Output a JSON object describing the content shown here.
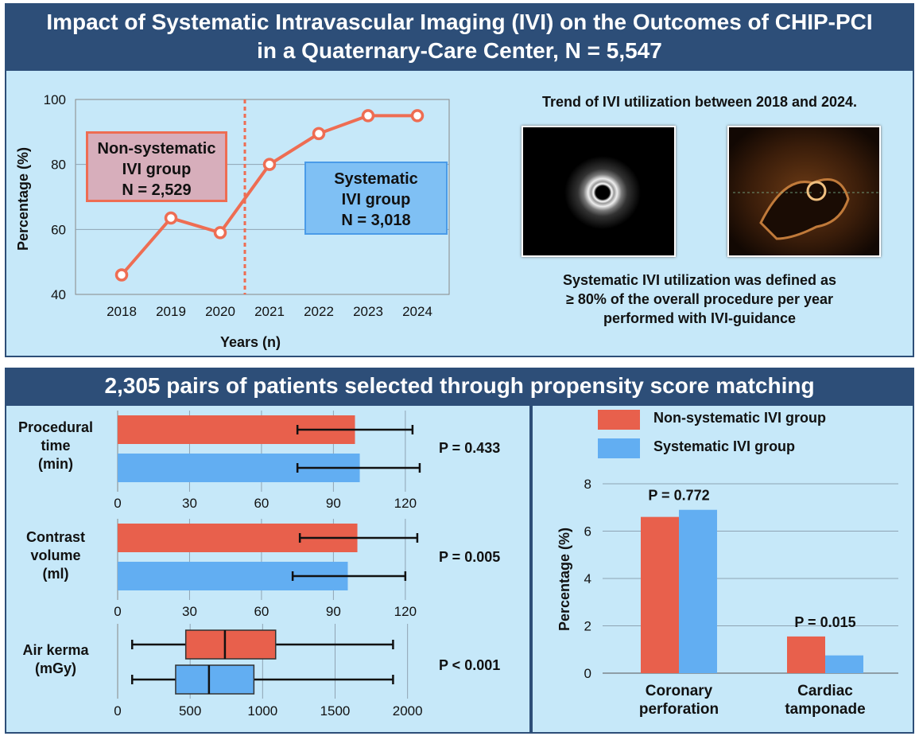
{
  "title": {
    "line1": "Impact of Systematic Intravascular Imaging (IVI) on the Outcomes of CHIP-PCI",
    "line2": "in a Quaternary-Care Center, N = 5,547"
  },
  "trend_text": {
    "heading": "Trend of IVI utilization between 2018 and 2024.",
    "definition_line1": "Systematic IVI utilization was defined as",
    "definition_line2": "≥ 80% of the overall procedure per year",
    "definition_line3": "performed with IVI-guidance"
  },
  "images": [
    {
      "name": "ivus-cross-section-image",
      "kind": "IVUS"
    },
    {
      "name": "oct-cross-section-image",
      "kind": "OCT"
    }
  ],
  "groups": {
    "nonsystematic": {
      "line1": "Non-systematic",
      "line2": "IVI group",
      "line3": "N = 2,529"
    },
    "systematic": {
      "line1": "Systematic",
      "line2": "IVI group",
      "line3": "N = 3,018"
    }
  },
  "bottom": {
    "banner": "2,305 pairs of patients selected through propensity score matching"
  },
  "colors": {
    "navy": "#2d4e78",
    "panel": "#c6e8f9",
    "red": "#e8604c",
    "blue": "#62aef2",
    "line": "#ee6d53"
  },
  "chart_data": [
    {
      "type": "line",
      "x": [
        "2018",
        "2019",
        "2020",
        "2021",
        "2022",
        "2023",
        "2024"
      ],
      "values": [
        46,
        63.5,
        59,
        80,
        89.5,
        95,
        95
      ],
      "xlabel": "Years (n)",
      "ylabel": "Percentage (%)",
      "yticks": [
        40,
        60,
        80,
        100
      ],
      "ylim": [
        40,
        100
      ],
      "divider_between": [
        "2020",
        "2021"
      ]
    },
    {
      "type": "bar",
      "label": [
        "Procedural",
        "time",
        "(min)"
      ],
      "p_value": "P = 0.433",
      "xlim": [
        0,
        130
      ],
      "xticks": [
        0,
        30,
        60,
        90,
        120
      ],
      "series": [
        {
          "name": "Non-systematic IVI group",
          "value": 99,
          "err_low": 75,
          "err_high": 123
        },
        {
          "name": "Systematic IVI group",
          "value": 101,
          "err_low": 75,
          "err_high": 126
        }
      ]
    },
    {
      "type": "bar",
      "label": [
        "Contrast",
        "volume",
        "(ml)"
      ],
      "p_value": "P = 0.005",
      "xlim": [
        0,
        130
      ],
      "xticks": [
        0,
        30,
        60,
        90,
        120
      ],
      "series": [
        {
          "name": "Non-systematic IVI group",
          "value": 100,
          "err_low": 76,
          "err_high": 125
        },
        {
          "name": "Systematic IVI group",
          "value": 96,
          "err_low": 73,
          "err_high": 120
        }
      ]
    },
    {
      "type": "box",
      "label": [
        "Air kerma",
        "(mGy)"
      ],
      "p_value": "P < 0.001",
      "xlim": [
        0,
        2150
      ],
      "xticks": [
        0,
        500,
        1000,
        1500,
        2000
      ],
      "series": [
        {
          "name": "Non-systematic IVI group",
          "min": 100,
          "q1": 470,
          "median": 740,
          "q3": 1090,
          "max": 1900
        },
        {
          "name": "Systematic IVI group",
          "min": 100,
          "q1": 400,
          "median": 630,
          "q3": 940,
          "max": 1900
        }
      ]
    },
    {
      "type": "bar",
      "categories": [
        [
          "Coronary",
          "perforation"
        ],
        [
          "Cardiac",
          "tamponade"
        ]
      ],
      "ylabel": "Percentage (%)",
      "ylim": [
        0,
        8
      ],
      "yticks": [
        0,
        2,
        4,
        6,
        8
      ],
      "p_values": [
        "P = 0.772",
        "P = 0.015"
      ],
      "legend": [
        "Non-systematic IVI group",
        "Systematic IVI group"
      ],
      "series": [
        {
          "name": "Non-systematic IVI group",
          "values": [
            6.6,
            1.55
          ]
        },
        {
          "name": "Systematic IVI group",
          "values": [
            6.9,
            0.75
          ]
        }
      ]
    }
  ]
}
